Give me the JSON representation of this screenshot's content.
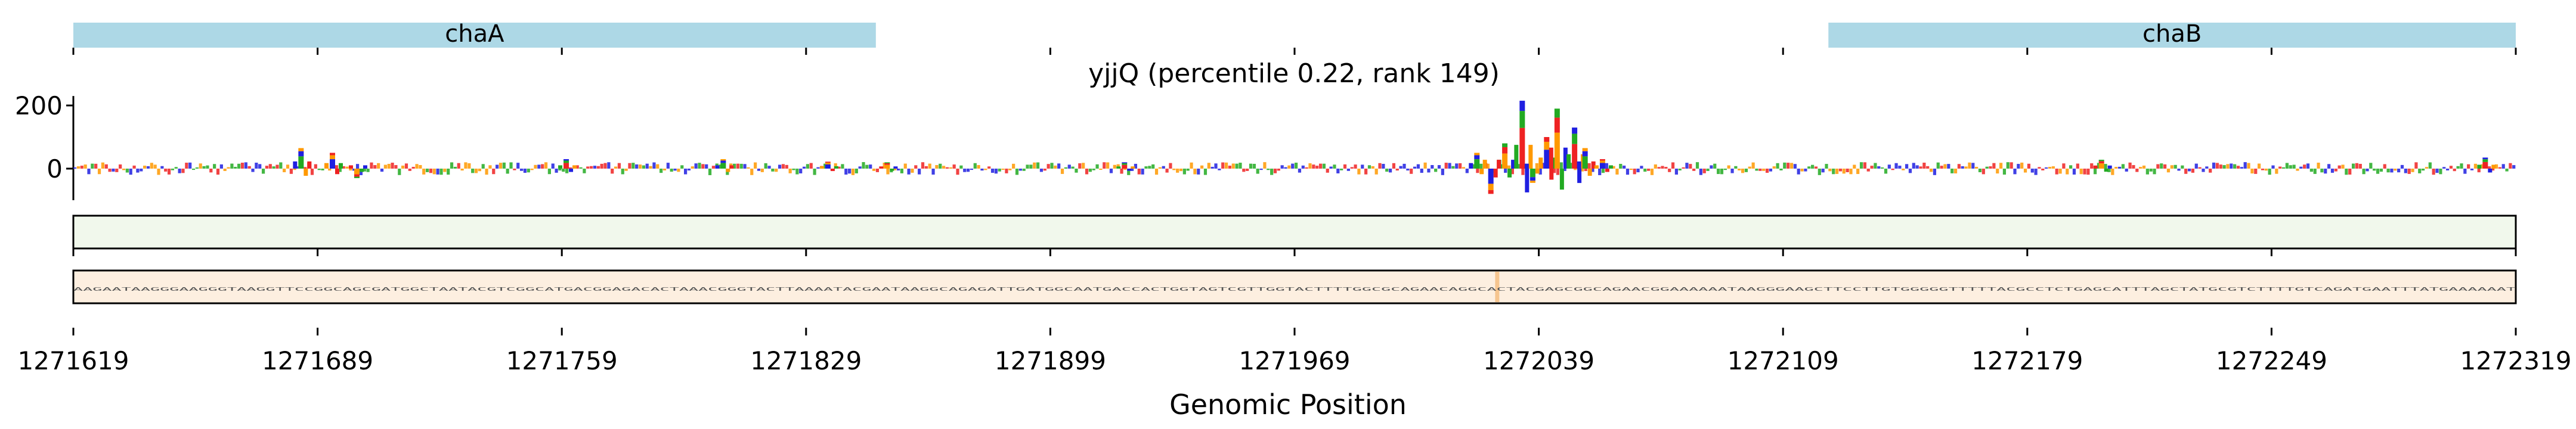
{
  "chart_data": {
    "type": "sequence-logo-track",
    "title": "yjjQ (percentile 0.22, rank 149)",
    "xlabel": "Genomic Position",
    "xlim": [
      1271619,
      1272319
    ],
    "x_ticks": [
      1271619,
      1271689,
      1271759,
      1271829,
      1271899,
      1271969,
      1272039,
      1272109,
      1272179,
      1272249,
      1272319
    ],
    "ylim": [
      -100,
      230
    ],
    "y_ticks": [
      0,
      200
    ],
    "genes": [
      {
        "name": "chaA",
        "start": 1271619,
        "end": 1271849
      },
      {
        "name": "chaB",
        "start": 1272122,
        "end": 1272319
      }
    ],
    "base_colors": {
      "A": "#22aa22",
      "C": "#1f1fe0",
      "G": "#ff9900",
      "T": "#ee2222"
    },
    "contribution_peaks": [
      {
        "x": 1271684,
        "value": 65
      },
      {
        "x": 1271693,
        "value": 50
      },
      {
        "x": 1271700,
        "value": -30
      },
      {
        "x": 1271760,
        "value": 30
      },
      {
        "x": 1271805,
        "value": 30
      },
      {
        "x": 1271835,
        "value": 22
      },
      {
        "x": 1271852,
        "value": 20
      },
      {
        "x": 1271920,
        "value": 20
      },
      {
        "x": 1272021,
        "value": 50
      },
      {
        "x": 1272025,
        "value": -80
      },
      {
        "x": 1272029,
        "value": 80
      },
      {
        "x": 1272034,
        "value": 215
      },
      {
        "x": 1272037,
        "value": -45
      },
      {
        "x": 1272041,
        "value": 100
      },
      {
        "x": 1272044,
        "value": 190
      },
      {
        "x": 1272049,
        "value": 130
      },
      {
        "x": 1272052,
        "value": 65
      },
      {
        "x": 1272057,
        "value": 30
      },
      {
        "x": 1272200,
        "value": 28
      },
      {
        "x": 1272310,
        "value": 35
      }
    ],
    "heatmap_tracks": [
      {
        "color": "#f1f8ec",
        "highlight_x": null
      },
      {
        "color": "#fdefe0",
        "highlight_x": 1272027
      }
    ],
    "sequence_text": "AAGAATAAGGGAAGGGTAAGGTTCCGGCAGCGATGGCTAATACGTCGGCATGACGGAGACACTAAACGGGTACTTAAAATACGAATAAGGCAGAGATTGATGGCAATGACCACTGGTAGTCGTTGGTACTTTTGGCGCAGAACAGGCACTACGAGCGGCAGAACGGAAAAAATAAGGGAAGCTTCCTTGTGGGGGTTTTTACGCCTCTGAGCATTTAGCTATGCGTCTTTTGTCAGATGAATTTATGAAAAAAT"
  }
}
